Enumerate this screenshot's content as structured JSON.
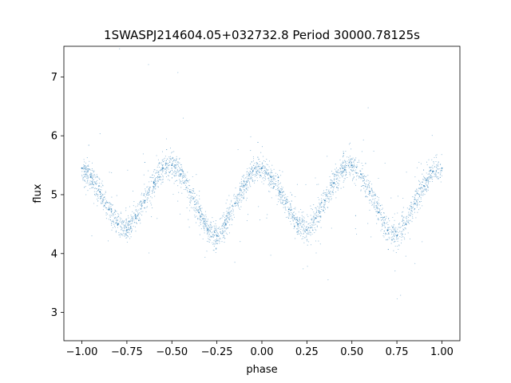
{
  "chart_data": {
    "type": "scatter",
    "title": "1SWASPJ214604.05+032732.8 Period 30000.78125s",
    "xlabel": "phase",
    "ylabel": "flux",
    "xlim": [
      -1.1,
      1.1
    ],
    "ylim": [
      2.52,
      7.52
    ],
    "x_ticks": [
      -1.0,
      -0.75,
      -0.5,
      -0.25,
      0.0,
      0.25,
      0.5,
      0.75,
      1.0
    ],
    "x_tick_labels": [
      "−1.00",
      "−0.75",
      "−0.50",
      "−0.25",
      "0.00",
      "0.25",
      "0.50",
      "0.75",
      "1.00"
    ],
    "y_ticks": [
      3,
      4,
      5,
      6,
      7
    ],
    "y_tick_labels": [
      "3",
      "4",
      "5",
      "6",
      "7"
    ],
    "grid": false,
    "marker_color": "#1f77b4",
    "series": [
      {
        "x": [
          -1.0,
          -0.95,
          -0.9,
          -0.85,
          -0.8,
          -0.75,
          -0.7,
          -0.65,
          -0.6,
          -0.55,
          -0.5,
          -0.45,
          -0.4,
          -0.35,
          -0.3,
          -0.25,
          -0.2,
          -0.15,
          -0.1,
          -0.05,
          0.0,
          0.05,
          0.1,
          0.15,
          0.2,
          0.25,
          0.3,
          0.35,
          0.4,
          0.45,
          0.5,
          0.55,
          0.6,
          0.65,
          0.7,
          0.75,
          0.8,
          0.85,
          0.9,
          0.95,
          1.0
        ],
        "y": [
          5.45,
          5.3,
          5.05,
          4.75,
          4.5,
          4.4,
          4.6,
          4.9,
          5.2,
          5.45,
          5.5,
          5.35,
          5.05,
          4.7,
          4.4,
          4.3,
          4.5,
          4.85,
          5.15,
          5.4,
          5.45,
          5.3,
          5.05,
          4.75,
          4.5,
          4.4,
          4.6,
          4.9,
          5.2,
          5.45,
          5.5,
          5.35,
          5.05,
          4.7,
          4.4,
          4.3,
          4.5,
          4.85,
          5.15,
          5.4,
          5.45
        ]
      }
    ]
  }
}
